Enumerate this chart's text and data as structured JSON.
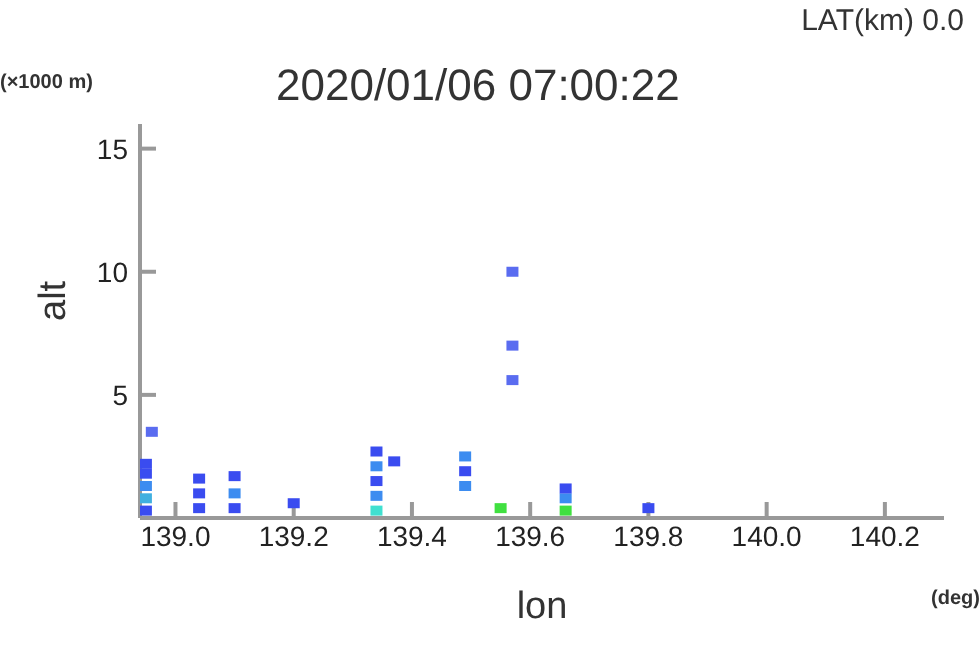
{
  "chart_data": {
    "type": "scatter",
    "title": "2020/01/06 07:00:22",
    "xlabel": "lon",
    "ylabel": "alt",
    "annotations": [
      "LAT(km) 0.0",
      "(×1000 m)",
      "(deg)"
    ],
    "x": [
      138.95,
      138.95,
      138.95,
      138.95,
      138.95,
      138.96,
      139.04,
      139.04,
      139.04,
      139.1,
      139.1,
      139.1,
      139.2,
      139.34,
      139.34,
      139.34,
      139.34,
      139.34,
      139.37,
      139.49,
      139.49,
      139.49,
      139.55,
      139.57,
      139.57,
      139.57,
      139.66,
      139.66,
      139.66,
      139.8
    ],
    "values": [
      0.3,
      0.8,
      1.3,
      1.8,
      2.2,
      3.5,
      0.4,
      1.0,
      1.6,
      0.4,
      1.0,
      1.7,
      0.6,
      0.3,
      0.9,
      1.5,
      2.1,
      2.7,
      2.3,
      1.3,
      1.9,
      2.5,
      0.4,
      10.0,
      7.0,
      5.6,
      0.3,
      0.8,
      1.2,
      0.4
    ],
    "colors": [
      "#3a4cf0",
      "#40b0e0",
      "#3c8cf0",
      "#3a4cf0",
      "#3a4cf0",
      "#5a6cf0",
      "#3a4cf0",
      "#3a4cf0",
      "#3a4cf0",
      "#3a4cf0",
      "#3c8cf0",
      "#3a4cf0",
      "#3a4cf0",
      "#40e0d0",
      "#3c8cf0",
      "#3a4cf0",
      "#3c8cf0",
      "#3a4cf0",
      "#3a4cf0",
      "#3c8cf0",
      "#3a4cf0",
      "#3c8cf0",
      "#40e040",
      "#5a6cf0",
      "#5a6cf0",
      "#5a6cf0",
      "#40e040",
      "#3c8cf0",
      "#3a4cf0",
      "#3a4cf0"
    ],
    "marker": "square",
    "xlim": [
      138.94,
      140.3
    ],
    "xticks": [
      {
        "value": 139.0,
        "label": "139.0"
      },
      139.2,
      139.4,
      139.6,
      139.8,
      {
        "value": 140.0,
        "label": "140.0"
      },
      140.2
    ],
    "ylim": [
      0,
      16
    ],
    "yticks": [
      5,
      10,
      15
    ]
  }
}
